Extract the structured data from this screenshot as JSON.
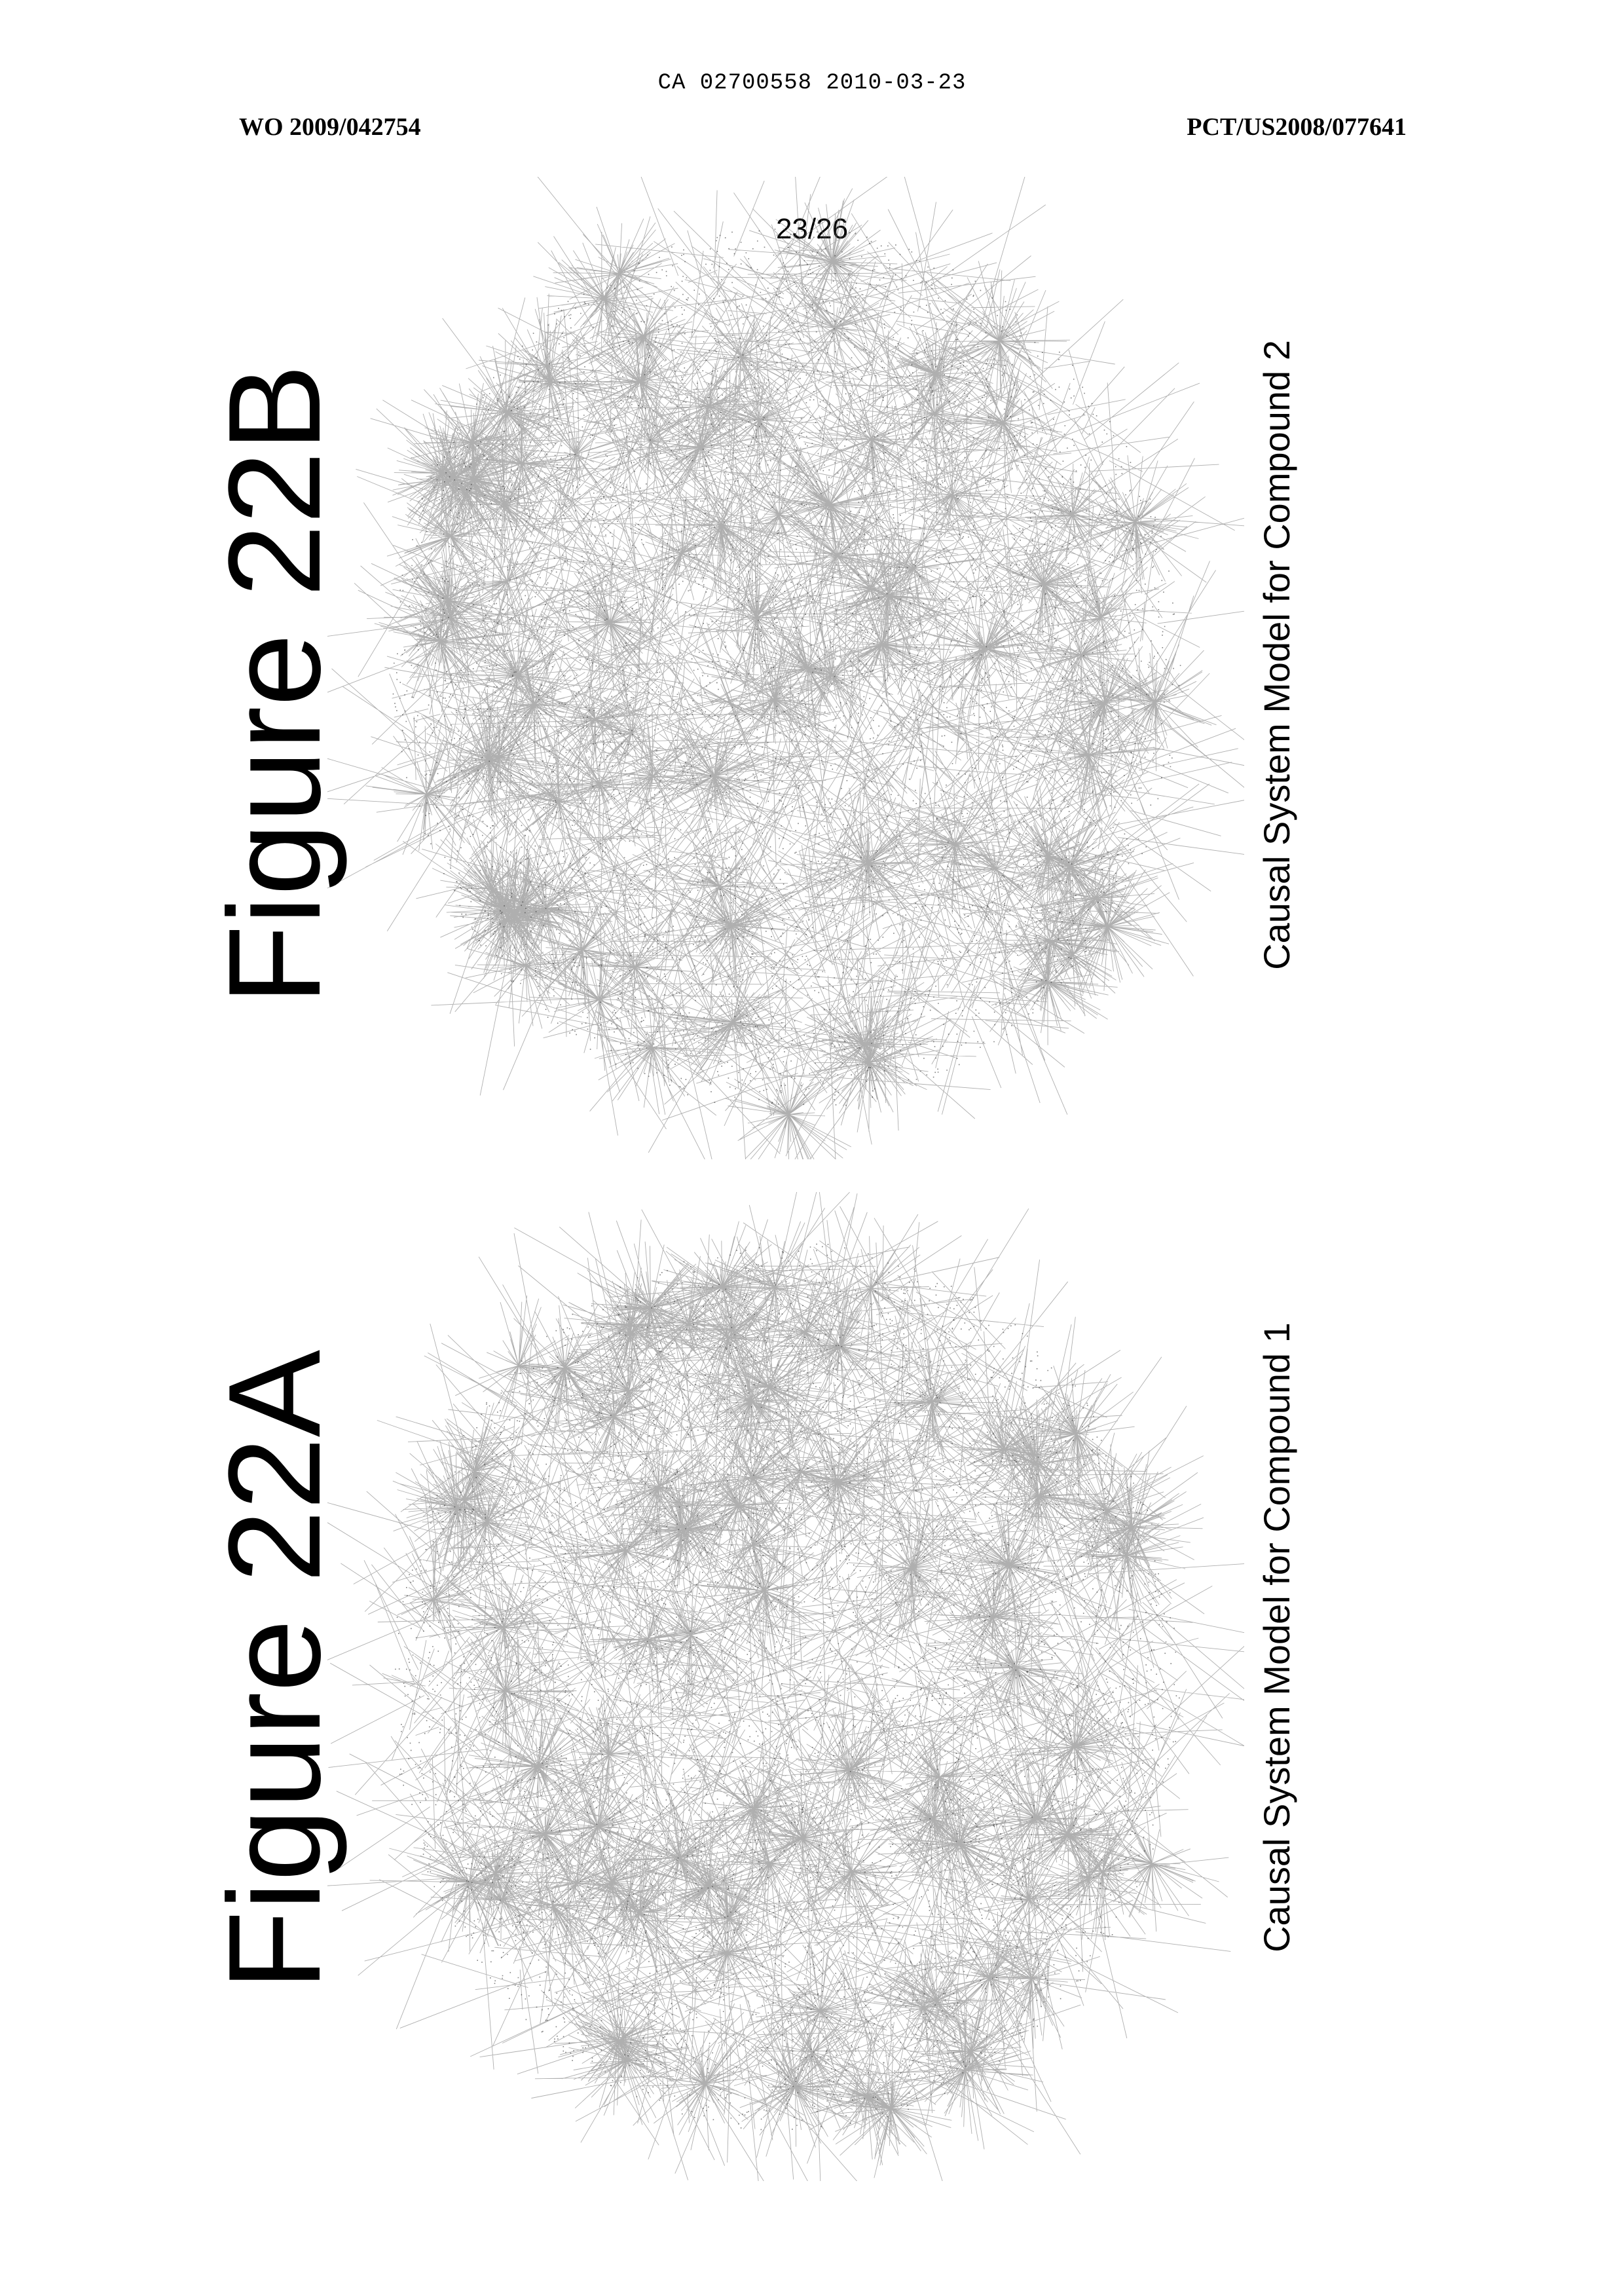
{
  "header": {
    "ca_number": "CA 02700558 2010-03-23",
    "wo_number": "WO 2009/042754",
    "pct_number": "PCT/US2008/077641",
    "page": "23/26"
  },
  "figures": [
    {
      "id": "B",
      "title": "Figure 22B",
      "caption": "Causal System Model for Compound 2"
    },
    {
      "id": "A",
      "title": "Figure 22A",
      "caption": "Causal System Model for Compound 1"
    }
  ],
  "colors": {
    "text": "#000000",
    "network_edge": "#6e6e6e",
    "network_node": "#2a2a2a"
  }
}
